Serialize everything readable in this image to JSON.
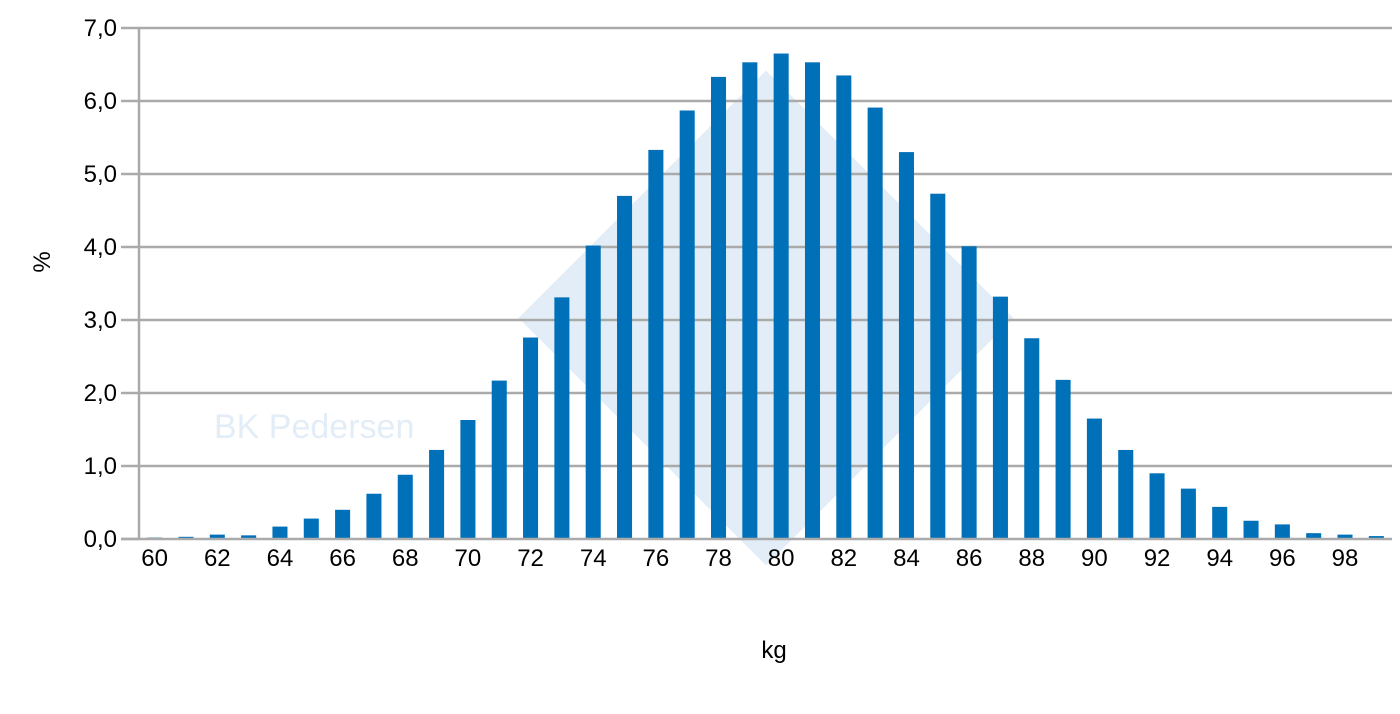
{
  "chart_data": {
    "type": "bar",
    "xlabel": "kg",
    "ylabel": "%",
    "ylim": [
      0,
      7
    ],
    "ytick_labels": [
      "0,0",
      "1,0",
      "2,0",
      "3,0",
      "4,0",
      "5,0",
      "6,0",
      "7,0"
    ],
    "categories": [
      60,
      61,
      62,
      63,
      64,
      65,
      66,
      67,
      68,
      69,
      70,
      71,
      72,
      73,
      74,
      75,
      76,
      77,
      78,
      79,
      80,
      81,
      82,
      83,
      84,
      85,
      86,
      87,
      88,
      89,
      90,
      91,
      92,
      93,
      94,
      95,
      96,
      97,
      98,
      99
    ],
    "xtick_labels": [
      "60",
      "62",
      "64",
      "66",
      "68",
      "70",
      "72",
      "74",
      "76",
      "78",
      "80",
      "82",
      "84",
      "86",
      "88",
      "90",
      "92",
      "94",
      "96",
      "98"
    ],
    "values": [
      0.02,
      0.03,
      0.06,
      0.05,
      0.17,
      0.28,
      0.4,
      0.62,
      0.88,
      1.22,
      1.63,
      2.17,
      2.76,
      3.31,
      4.02,
      4.7,
      5.33,
      5.87,
      6.33,
      6.53,
      6.65,
      6.53,
      6.35,
      5.91,
      5.3,
      4.73,
      4.01,
      3.32,
      2.75,
      2.18,
      1.65,
      1.22,
      0.9,
      0.69,
      0.44,
      0.25,
      0.2,
      0.08,
      0.06,
      0.04
    ],
    "grid": true,
    "bar_color": "#0071b9",
    "grid_color": "#aaaaaa",
    "watermark": "BK Pedersen"
  }
}
